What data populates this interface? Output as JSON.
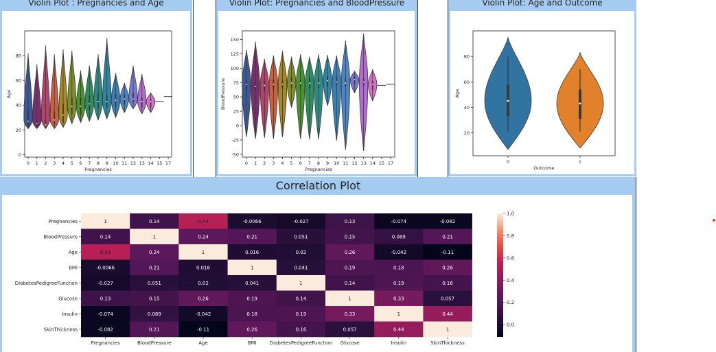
{
  "panels": {
    "violin1_title": "Violin Plot : Pregnancies and Age",
    "violin2_title": "Violin Plot: Pregnancies and BloodPressure",
    "violin3_title": "Violin Plot: Age and Outcome",
    "corr_title": "Correlation Plot"
  },
  "colors": {
    "panel_border": "#a6cbf0",
    "outcome0": "#3274a1",
    "outcome1": "#e1812c",
    "small_violins": [
      "#3b5898",
      "#7b2e6e",
      "#b4436c",
      "#c96040",
      "#a78a27",
      "#7f8f2a",
      "#4a922f",
      "#2e8f5e",
      "#2d8b86",
      "#2e86a3",
      "#3a80b4",
      "#4d86c6",
      "#7b78cf",
      "#b26bd0",
      "#d472c6",
      "#c0c0c0",
      "#c0c0c0",
      "#c0c0c0"
    ]
  },
  "chart_data": [
    {
      "type": "violin",
      "title": "",
      "xlabel": "Pregnancies",
      "ylabel": "Age",
      "categories": [
        "0",
        "1",
        "2",
        "3",
        "4",
        "5",
        "6",
        "7",
        "8",
        "9",
        "10",
        "11",
        "12",
        "13",
        "14",
        "15",
        "17"
      ],
      "yticks": [
        0,
        20,
        40,
        60,
        80
      ],
      "ylim": [
        -2,
        100
      ],
      "series": [
        {
          "category": "0",
          "min": 21,
          "max": 82,
          "q1": 23,
          "median": 27,
          "q3": 36
        },
        {
          "category": "1",
          "min": 21,
          "max": 73,
          "q1": 22,
          "median": 25,
          "q3": 28
        },
        {
          "category": "2",
          "min": 21,
          "max": 88,
          "q1": 22,
          "median": 24,
          "q3": 28
        },
        {
          "category": "3",
          "min": 21,
          "max": 81,
          "q1": 24,
          "median": 28,
          "q3": 35
        },
        {
          "category": "4",
          "min": 22,
          "max": 85,
          "q1": 26,
          "median": 32,
          "q3": 41
        },
        {
          "category": "5",
          "min": 25,
          "max": 84,
          "q1": 33,
          "median": 39,
          "q3": 46
        },
        {
          "category": "6",
          "min": 26,
          "max": 68,
          "q1": 32,
          "median": 39,
          "q3": 46
        },
        {
          "category": "7",
          "min": 27,
          "max": 72,
          "q1": 36,
          "median": 41,
          "q3": 48
        },
        {
          "category": "8",
          "min": 28,
          "max": 81,
          "q1": 37,
          "median": 43,
          "q3": 50
        },
        {
          "category": "9",
          "min": 29,
          "max": 94,
          "q1": 38,
          "median": 43,
          "q3": 48
        },
        {
          "category": "10",
          "min": 30,
          "max": 66,
          "q1": 39,
          "median": 44,
          "q3": 49
        },
        {
          "category": "11",
          "min": 34,
          "max": 58,
          "q1": 40,
          "median": 45,
          "q3": 49
        },
        {
          "category": "12",
          "min": 37,
          "max": 72,
          "q1": 42,
          "median": 45,
          "q3": 50
        },
        {
          "category": "13",
          "min": 33,
          "max": 65,
          "q1": 38,
          "median": 43,
          "q3": 46
        },
        {
          "category": "14",
          "min": 34,
          "max": 50,
          "q1": 38,
          "median": 43,
          "q3": 45
        },
        {
          "category": "15",
          "min": 43,
          "max": 43,
          "q1": 43,
          "median": 43,
          "q3": 43
        },
        {
          "category": "17",
          "min": 47,
          "max": 47,
          "q1": 47,
          "median": 47,
          "q3": 47
        }
      ]
    },
    {
      "type": "violin",
      "title": "",
      "xlabel": "Pregnancies",
      "ylabel": "BloodPressure",
      "categories": [
        "0",
        "1",
        "2",
        "3",
        "4",
        "5",
        "6",
        "7",
        "8",
        "9",
        "10",
        "11",
        "12",
        "13",
        "14",
        "15",
        "17"
      ],
      "yticks": [
        -50,
        -25,
        0,
        25,
        50,
        75,
        100,
        125,
        150
      ],
      "ylim": [
        -55,
        165
      ],
      "series": [
        {
          "category": "0",
          "min": -20,
          "max": 132,
          "q1": 62,
          "median": 72,
          "q3": 80
        },
        {
          "category": "1",
          "min": -23,
          "max": 146,
          "q1": 60,
          "median": 68,
          "q3": 76
        },
        {
          "category": "2",
          "min": -21,
          "max": 116,
          "q1": 60,
          "median": 70,
          "q3": 78
        },
        {
          "category": "3",
          "min": -23,
          "max": 122,
          "q1": 62,
          "median": 72,
          "q3": 80
        },
        {
          "category": "4",
          "min": -20,
          "max": 130,
          "q1": 64,
          "median": 72,
          "q3": 80
        },
        {
          "category": "5",
          "min": 32,
          "max": 120,
          "q1": 66,
          "median": 74,
          "q3": 84
        },
        {
          "category": "6",
          "min": -23,
          "max": 124,
          "q1": 64,
          "median": 74,
          "q3": 80
        },
        {
          "category": "7",
          "min": -24,
          "max": 120,
          "q1": 66,
          "median": 74,
          "q3": 84
        },
        {
          "category": "8",
          "min": -24,
          "max": 124,
          "q1": 66,
          "median": 74,
          "q3": 82
        },
        {
          "category": "9",
          "min": 35,
          "max": 123,
          "q1": 68,
          "median": 78,
          "q3": 86
        },
        {
          "category": "10",
          "min": -26,
          "max": 122,
          "q1": 70,
          "median": 76,
          "q3": 84
        },
        {
          "category": "11",
          "min": -42,
          "max": 148,
          "q1": 68,
          "median": 74,
          "q3": 82
        },
        {
          "category": "12",
          "min": 57,
          "max": 95,
          "q1": 72,
          "median": 80,
          "q3": 86
        },
        {
          "category": "13",
          "min": -44,
          "max": 160,
          "q1": 70,
          "median": 76,
          "q3": 82
        },
        {
          "category": "14",
          "min": 43,
          "max": 98,
          "q1": 62,
          "median": 72,
          "q3": 78
        },
        {
          "category": "15",
          "min": 70,
          "max": 70,
          "q1": 70,
          "median": 70,
          "q3": 70
        },
        {
          "category": "17",
          "min": 72,
          "max": 72,
          "q1": 72,
          "median": 72,
          "q3": 72
        }
      ]
    },
    {
      "type": "violin",
      "title": "",
      "xlabel": "Outcome",
      "ylabel": "Age",
      "categories": [
        "0",
        "1"
      ],
      "yticks": [
        20,
        40,
        60,
        80
      ],
      "ylim": [
        2,
        100
      ],
      "series": [
        {
          "category": "0",
          "min": 7,
          "max": 95,
          "q1": 33,
          "median": 45,
          "q3": 58,
          "whisker_low": 21,
          "whisker_high": 80
        },
        {
          "category": "1",
          "min": 8,
          "max": 83,
          "q1": 31,
          "median": 43,
          "q3": 54,
          "whisker_low": 21,
          "whisker_high": 70
        }
      ]
    },
    {
      "type": "heatmap",
      "title": "",
      "rows": [
        "Pregnancies",
        "BloodPressure",
        "Age",
        "BMI",
        "DiabetesPedigreeFunction",
        "Glucose",
        "Insulin",
        "SkinThickness"
      ],
      "columns": [
        "Pregnancies",
        "BloodPressure",
        "Age",
        "BMI",
        "DiabetesPedigreeFunction",
        "Glucose",
        "Insulin",
        "SkinThickness"
      ],
      "values": [
        [
          1,
          0.14,
          0.54,
          -0.0066,
          -0.027,
          0.13,
          -0.074,
          -0.082
        ],
        [
          0.14,
          1,
          0.24,
          0.21,
          0.051,
          0.15,
          0.089,
          0.21
        ],
        [
          0.54,
          0.24,
          1,
          0.016,
          0.02,
          0.26,
          -0.042,
          -0.11
        ],
        [
          -0.0066,
          0.21,
          0.016,
          1,
          0.041,
          0.19,
          0.18,
          0.26
        ],
        [
          -0.027,
          0.051,
          0.02,
          0.041,
          1,
          0.14,
          0.19,
          0.16
        ],
        [
          0.13,
          0.15,
          0.26,
          0.19,
          0.14,
          1,
          0.33,
          0.057
        ],
        [
          -0.074,
          0.089,
          -0.042,
          0.18,
          0.19,
          0.33,
          1,
          0.44
        ],
        [
          -0.082,
          0.21,
          -0.11,
          0.26,
          0.16,
          0.057,
          0.44,
          1
        ]
      ],
      "labels": [
        [
          "1",
          "0.14",
          "0.54",
          "-0.0066",
          "-0.027",
          "0.13",
          "-0.074",
          "-0.082"
        ],
        [
          "0.14",
          "1",
          "0.24",
          "0.21",
          "0.051",
          "0.15",
          "0.089",
          "0.21"
        ],
        [
          "0.54",
          "0.24",
          "1",
          "0.016",
          "0.02",
          "0.26",
          "-0.042",
          "-0.11"
        ],
        [
          "-0.0066",
          "0.21",
          "0.016",
          "1",
          "0.041",
          "0.19",
          "0.18",
          "0.26"
        ],
        [
          "-0.027",
          "0.051",
          "0.02",
          "0.041",
          "1",
          "0.14",
          "0.19",
          "0.16"
        ],
        [
          "0.13",
          "0.15",
          "0.26",
          "0.19",
          "0.14",
          "1",
          "0.33",
          "0.057"
        ],
        [
          "-0.074",
          "0.089",
          "-0.042",
          "0.18",
          "0.19",
          "0.33",
          "1",
          "0.44"
        ],
        [
          "-0.082",
          "0.21",
          "-0.11",
          "0.26",
          "0.16",
          "0.057",
          "0.44",
          "1"
        ]
      ],
      "colorbar_ticks": [
        "1.0",
        "0.8",
        "0.6",
        "0.4",
        "0.2",
        "0.0"
      ],
      "colorbar_range": [
        -0.11,
        1.0
      ]
    }
  ]
}
